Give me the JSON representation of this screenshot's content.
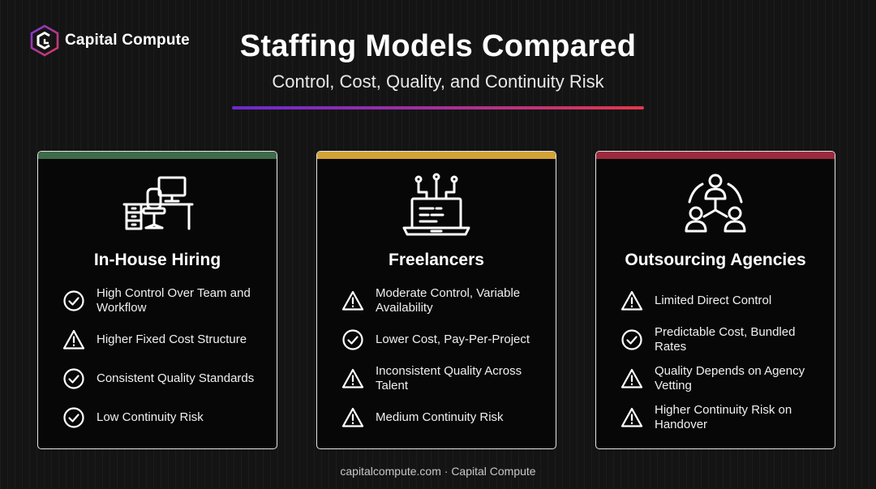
{
  "brand": {
    "name": "Capital Compute",
    "logo_icon": "hexagon-c-logo-icon"
  },
  "header": {
    "title": "Staffing Models Compared",
    "subtitle": "Control, Cost, Quality, and Continuity Risk"
  },
  "colors": {
    "accent_green": "#3e6b4a",
    "accent_amber": "#d2a236",
    "accent_red": "#9c2a3e",
    "gradient_start": "#6a2ad0",
    "gradient_end": "#e2384a"
  },
  "cards": [
    {
      "title": "In-House Hiring",
      "icon": "office-desk-icon",
      "items": [
        {
          "icon": "check-circle-icon",
          "text": "High Control Over Team and Workflow"
        },
        {
          "icon": "warning-triangle-icon",
          "text": "Higher Fixed Cost Structure"
        },
        {
          "icon": "check-circle-icon",
          "text": "Consistent Quality Standards"
        },
        {
          "icon": "check-circle-icon",
          "text": "Low Continuity Risk"
        }
      ]
    },
    {
      "title": "Freelancers",
      "icon": "laptop-network-icon",
      "items": [
        {
          "icon": "warning-triangle-icon",
          "text": "Moderate Control, Variable Availability"
        },
        {
          "icon": "check-circle-icon",
          "text": "Lower Cost, Pay-Per-Project"
        },
        {
          "icon": "warning-triangle-icon",
          "text": "Inconsistent Quality Across Talent"
        },
        {
          "icon": "warning-triangle-icon",
          "text": "Medium Continuity Risk"
        }
      ]
    },
    {
      "title": "Outsourcing Agencies",
      "icon": "team-network-icon",
      "items": [
        {
          "icon": "warning-triangle-icon",
          "text": "Limited Direct Control"
        },
        {
          "icon": "check-circle-icon",
          "text": "Predictable Cost, Bundled Rates"
        },
        {
          "icon": "warning-triangle-icon",
          "text": "Quality Depends on Agency Vetting"
        },
        {
          "icon": "warning-triangle-icon",
          "text": "Higher Continuity Risk on Handover"
        }
      ]
    }
  ],
  "footer": "capitalcompute.com · Capital Compute"
}
